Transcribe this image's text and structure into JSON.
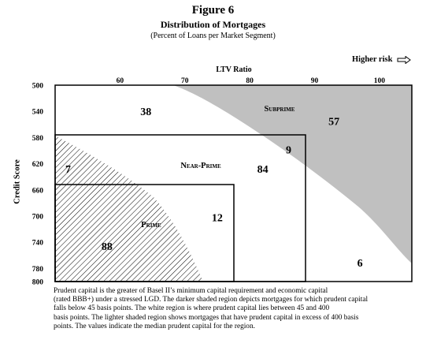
{
  "figure": {
    "number": "Figure 6",
    "title": "Distribution of Mortgages",
    "subtitle": "(Percent of Loans per Market Segment)"
  },
  "higher_risk": "Higher risk",
  "chart_data": {
    "type": "heatmap",
    "title": "Distribution of Mortgages",
    "xlabel": "LTV Ratio",
    "ylabel": "Credit Score",
    "x_ticks": [
      60,
      70,
      80,
      90,
      100
    ],
    "y_ticks": [
      500,
      540,
      580,
      620,
      660,
      700,
      740,
      780,
      800
    ],
    "xlim": [
      50,
      105
    ],
    "ylim": [
      500,
      800
    ],
    "y_inverted": true,
    "segments": [
      {
        "name": "Subprime",
        "ltv_max": 105,
        "credit_min": 500
      },
      {
        "name": "Near-Prime",
        "ltv_max": 90,
        "credit_min": 580
      },
      {
        "name": "Prime",
        "ltv_max": 80,
        "credit_min": 660
      }
    ],
    "segment_labels": [
      "Subprime",
      "Near-Prime",
      "Prime"
    ],
    "cell_values": [
      {
        "value": "38",
        "ltv": 64,
        "credit": 540
      },
      {
        "value": "57",
        "ltv": 93,
        "credit": 555
      },
      {
        "value": "9",
        "ltv": 86,
        "credit": 598
      },
      {
        "value": "84",
        "ltv": 82,
        "credit": 628
      },
      {
        "value": "7",
        "ltv": 52,
        "credit": 628
      },
      {
        "value": "12",
        "ltv": 75,
        "credit": 702
      },
      {
        "value": "88",
        "ltv": 58,
        "credit": 746
      },
      {
        "value": "6",
        "ltv": 97,
        "credit": 771
      }
    ],
    "dark_region": "prudent capital above 400 basis points",
    "hatched_region": "prudent capital below 45 basis points"
  },
  "caption": [
    "Prudent capital is the greater of Basel II’s minimum capital requirement and economic capital",
    "(rated BBB+) under a stressed LGD. The darker shaded region depicts mortgages for which prudent capital",
    "falls below 45 basis points. The white region is where prudent capital lies between 45 and 400",
    "basis points. The lighter shaded region shows mortgages that have prudent capital in excess of 400 basis",
    "points. The values indicate the median prudent capital for the region."
  ],
  "colors": {
    "dark_region": "#c0c0c0",
    "hatch": "#000000",
    "frame": "#000000"
  }
}
